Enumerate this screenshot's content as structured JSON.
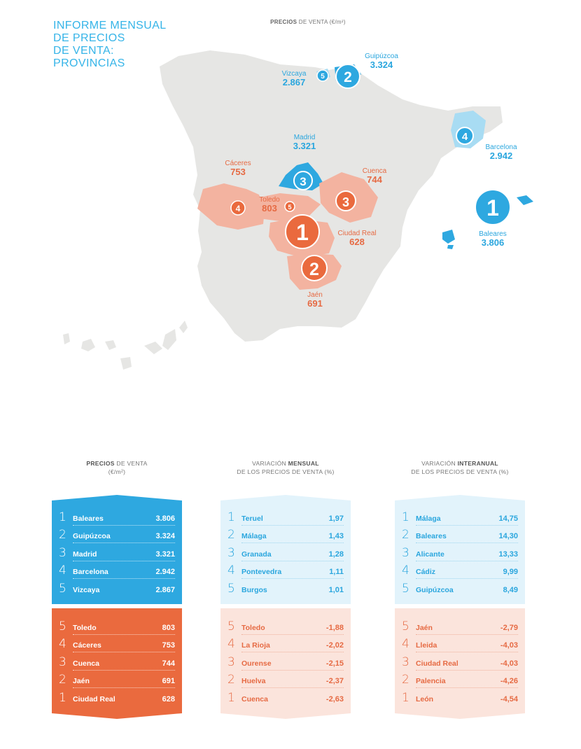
{
  "title": [
    "INFORME MENSUAL",
    "DE PRECIOS",
    "DE VENTA:",
    "PROVINCIAS"
  ],
  "map_title": {
    "bold": "PRECIOS",
    "rest": "DE VENTA (€/m²)"
  },
  "colors": {
    "blue": "#2ea8e0",
    "orange": "#ea6a3e",
    "light_blue": "#e2f3fb",
    "light_orange": "#fbe4dc",
    "map_land": "#e6e6e4"
  },
  "map_labels": {
    "guipuzcoa": {
      "name": "Guipúzcoa",
      "price": "3.324",
      "rank": "2"
    },
    "vizcaya": {
      "name": "Vizcaya",
      "price": "2.867",
      "rank": "5"
    },
    "barcelona": {
      "name": "Barcelona",
      "price": "2.942",
      "rank": "4"
    },
    "madrid": {
      "name": "Madrid",
      "price": "3.321",
      "rank": "3"
    },
    "baleares": {
      "name": "Baleares",
      "price": "3.806",
      "rank": "1"
    },
    "caceres": {
      "name": "Cáceres",
      "price": "753",
      "rank": "4"
    },
    "toledo": {
      "name": "Toledo",
      "price": "803",
      "rank": "5"
    },
    "cuenca": {
      "name": "Cuenca",
      "price": "744",
      "rank": "3"
    },
    "ciudad_real": {
      "name": "Ciudad Real",
      "price": "628",
      "rank": "1"
    },
    "jaen": {
      "name": "Jaén",
      "price": "691",
      "rank": "2"
    }
  },
  "columns": [
    {
      "header_bold": "PRECIOS",
      "header_rest": "DE VENTA",
      "header_line2": "(€/m²)",
      "top": [
        {
          "rank": "1",
          "name": "Baleares",
          "value": "3.806"
        },
        {
          "rank": "2",
          "name": "Guipúzcoa",
          "value": "3.324"
        },
        {
          "rank": "3",
          "name": "Madrid",
          "value": "3.321"
        },
        {
          "rank": "4",
          "name": "Barcelona",
          "value": "2.942"
        },
        {
          "rank": "5",
          "name": "Vizcaya",
          "value": "2.867"
        }
      ],
      "bottom": [
        {
          "rank": "5",
          "name": "Toledo",
          "value": "803"
        },
        {
          "rank": "4",
          "name": "Cáceres",
          "value": "753"
        },
        {
          "rank": "3",
          "name": "Cuenca",
          "value": "744"
        },
        {
          "rank": "2",
          "name": "Jaén",
          "value": "691"
        },
        {
          "rank": "1",
          "name": "Ciudad Real",
          "value": "628"
        }
      ]
    },
    {
      "header_pre": "VARIACIÓN",
      "header_bold": "MENSUAL",
      "header_line2": "DE LOS PRECIOS DE VENTA (%)",
      "top": [
        {
          "rank": "1",
          "name": "Teruel",
          "value": "1,97"
        },
        {
          "rank": "2",
          "name": "Málaga",
          "value": "1,43"
        },
        {
          "rank": "3",
          "name": "Granada",
          "value": "1,28"
        },
        {
          "rank": "4",
          "name": "Pontevedra",
          "value": "1,11"
        },
        {
          "rank": "5",
          "name": "Burgos",
          "value": "1,01"
        }
      ],
      "bottom": [
        {
          "rank": "5",
          "name": "Toledo",
          "value": "-1,88"
        },
        {
          "rank": "4",
          "name": "La Rioja",
          "value": "-2,02"
        },
        {
          "rank": "3",
          "name": "Ourense",
          "value": "-2,15"
        },
        {
          "rank": "2",
          "name": "Huelva",
          "value": "-2,37"
        },
        {
          "rank": "1",
          "name": "Cuenca",
          "value": "-2,63"
        }
      ]
    },
    {
      "header_pre": "VARIACIÓN",
      "header_bold": "INTERANUAL",
      "header_line2": "DE LOS PRECIOS DE VENTA (%)",
      "top": [
        {
          "rank": "1",
          "name": "Málaga",
          "value": "14,75"
        },
        {
          "rank": "2",
          "name": "Baleares",
          "value": "14,30"
        },
        {
          "rank": "3",
          "name": "Alicante",
          "value": "13,33"
        },
        {
          "rank": "4",
          "name": "Cádiz",
          "value": "9,99"
        },
        {
          "rank": "5",
          "name": "Guipúzcoa",
          "value": "8,49"
        }
      ],
      "bottom": [
        {
          "rank": "5",
          "name": "Jaén",
          "value": "-2,79"
        },
        {
          "rank": "4",
          "name": "Lleida",
          "value": "-4,03"
        },
        {
          "rank": "3",
          "name": "Ciudad Real",
          "value": "-4,03"
        },
        {
          "rank": "2",
          "name": "Palencia",
          "value": "-4,26"
        },
        {
          "rank": "1",
          "name": "León",
          "value": "-4,54"
        }
      ]
    }
  ]
}
